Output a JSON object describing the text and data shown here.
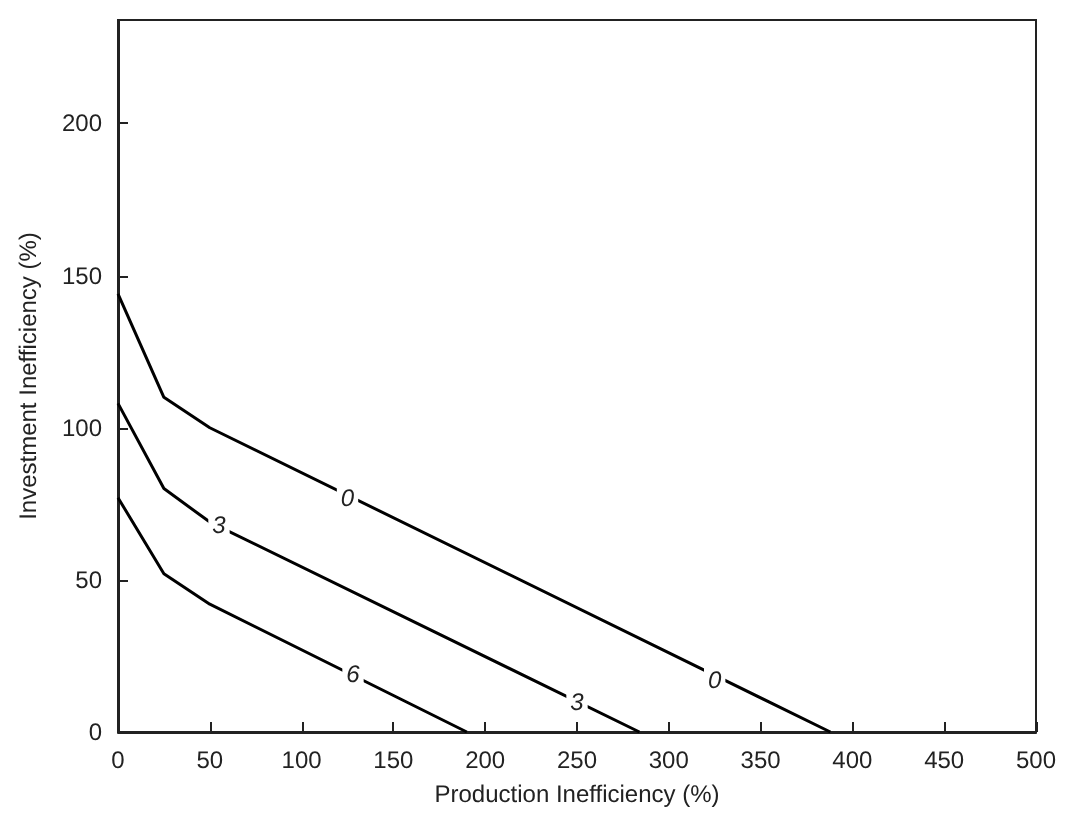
{
  "chart_data": {
    "type": "line",
    "xlabel": "Production Inefficiency (%)",
    "ylabel": "Investment Inefficiency (%)",
    "series": [
      {
        "color": "#000000",
        "x": [
          0,
          25,
          50,
          388
        ],
        "values": [
          144,
          110,
          100,
          0
        ]
      },
      {
        "color": "#000000",
        "x": [
          0,
          25,
          50,
          284
        ],
        "values": [
          108,
          80,
          69,
          0
        ]
      },
      {
        "color": "#000000",
        "x": [
          0,
          25,
          50,
          190
        ],
        "values": [
          77,
          52,
          42,
          0
        ]
      }
    ],
    "xlim": [
      0,
      500
    ],
    "xticks": [
      0,
      50,
      100,
      150,
      200,
      250,
      300,
      350,
      400,
      450,
      500
    ],
    "ylim": [
      0,
      234
    ],
    "yticks": [
      0,
      50,
      100,
      150,
      200
    ],
    "grid": false,
    "marker": "none",
    "line_style": "solid",
    "annotations": [
      {
        "text": "0",
        "x": 125,
        "y": 77
      },
      {
        "text": "0",
        "x": 325,
        "y": 17
      },
      {
        "text": "3",
        "x": 55,
        "y": 68
      },
      {
        "text": "3",
        "x": 250,
        "y": 10
      },
      {
        "text": "6",
        "x": 128,
        "y": 19
      }
    ]
  }
}
